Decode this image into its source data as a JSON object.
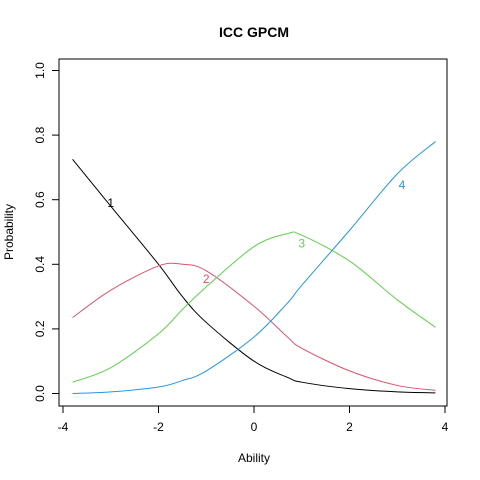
{
  "chart_data": {
    "type": "line",
    "title": "ICC GPCM",
    "xlabel": "Ability",
    "ylabel": "Probability",
    "xlim": [
      -4,
      4
    ],
    "ylim": [
      0,
      1
    ],
    "x_ticks": [
      -4,
      -2,
      0,
      2,
      4
    ],
    "y_ticks": [
      0.0,
      0.2,
      0.4,
      0.6,
      0.8,
      1.0
    ],
    "x_tick_labels": [
      "-4",
      "-2",
      "0",
      "2",
      "4"
    ],
    "y_tick_labels": [
      "0.0",
      "0.2",
      "0.4",
      "0.6",
      "0.8",
      "1.0"
    ],
    "grid": false,
    "x": [
      -3.8,
      -3.0,
      -2.0,
      -1.5,
      -1.0,
      0.0,
      0.7,
      1.0,
      2.0,
      3.0,
      3.8
    ],
    "series": [
      {
        "name": "1",
        "color": "#000000",
        "label_at": [
          -3.0,
          0.59
        ],
        "values": [
          0.725,
          0.58,
          0.4,
          0.3,
          0.22,
          0.1,
          0.05,
          0.035,
          0.015,
          0.005,
          0.002
        ]
      },
      {
        "name": "2",
        "color": "#DF536B",
        "label_at": [
          -1.0,
          0.355
        ],
        "values": [
          0.235,
          0.32,
          0.395,
          0.4,
          0.38,
          0.27,
          0.175,
          0.14,
          0.07,
          0.025,
          0.01
        ]
      },
      {
        "name": "3",
        "color": "#61D04F",
        "label_at": [
          1.0,
          0.465
        ],
        "values": [
          0.035,
          0.08,
          0.185,
          0.26,
          0.33,
          0.455,
          0.495,
          0.49,
          0.41,
          0.29,
          0.205
        ]
      },
      {
        "name": "4",
        "color": "#2297E6",
        "label_at": [
          3.1,
          0.645
        ],
        "values": [
          0.0,
          0.005,
          0.02,
          0.04,
          0.07,
          0.175,
          0.28,
          0.335,
          0.505,
          0.68,
          0.78
        ]
      }
    ]
  }
}
